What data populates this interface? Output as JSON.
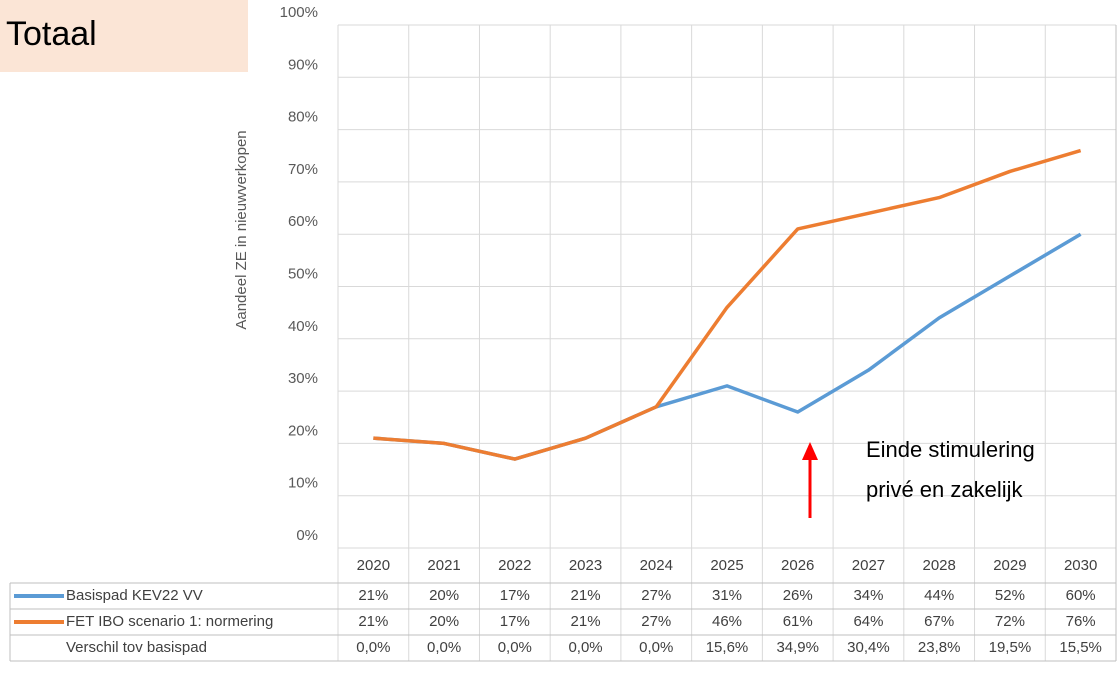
{
  "chart_data": {
    "type": "line",
    "title": "Totaal",
    "y_label": "Aandeel ZE in nieuwverkopen",
    "annotation": [
      "Einde stimulering",
      "privé en zakelijk"
    ],
    "categories": [
      "2020",
      "2021",
      "2022",
      "2023",
      "2024",
      "2025",
      "2026",
      "2027",
      "2028",
      "2029",
      "2030"
    ],
    "series": [
      {
        "name": "Basispad KEV22 VV",
        "color": "#5b9bd5",
        "values": [
          21,
          20,
          17,
          21,
          27,
          31,
          26,
          34,
          44,
          52,
          60
        ],
        "value_labels": [
          "21%",
          "20%",
          "17%",
          "21%",
          "27%",
          "31%",
          "26%",
          "34%",
          "44%",
          "52%",
          "60%"
        ]
      },
      {
        "name": "FET IBO scenario 1: normering",
        "color": "#ed7d31",
        "values": [
          21,
          20,
          17,
          21,
          27,
          46,
          61,
          64,
          67,
          72,
          76
        ],
        "value_labels": [
          "21%",
          "20%",
          "17%",
          "21%",
          "27%",
          "46%",
          "61%",
          "64%",
          "67%",
          "72%",
          "76%"
        ]
      }
    ],
    "difference": {
      "name": "Verschil tov basispad",
      "values": [
        0.0,
        0.0,
        0.0,
        0.0,
        0.0,
        15.6,
        34.9,
        30.4,
        23.8,
        19.5,
        15.5
      ],
      "value_labels": [
        "0,0%",
        "0,0%",
        "0,0%",
        "0,0%",
        "0,0%",
        "15,6%",
        "34,9%",
        "30,4%",
        "23,8%",
        "19,5%",
        "15,5%"
      ]
    },
    "ylim": [
      0,
      100
    ],
    "yticks": [
      {
        "value": 0,
        "label": "0%"
      },
      {
        "value": 10,
        "label": "10%"
      },
      {
        "value": 20,
        "label": "20%"
      },
      {
        "value": 30,
        "label": "30%"
      },
      {
        "value": 40,
        "label": "40%"
      },
      {
        "value": 50,
        "label": "50%"
      },
      {
        "value": 60,
        "label": "60%"
      },
      {
        "value": 70,
        "label": "70%"
      },
      {
        "value": 80,
        "label": "80%"
      },
      {
        "value": 90,
        "label": "90%"
      },
      {
        "value": 100,
        "label": "100%"
      }
    ],
    "grid": true
  }
}
